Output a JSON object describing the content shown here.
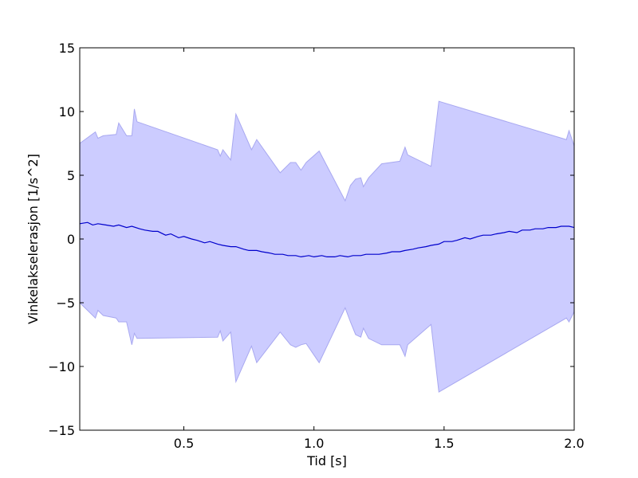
{
  "chart_data": {
    "type": "area",
    "title": "",
    "xlabel": "Tid [s]",
    "ylabel": "Vinkelakselerasjon [1/s^2]",
    "xlim": [
      0.1,
      2.0
    ],
    "ylim": [
      -15,
      15
    ],
    "xticks": [
      0.5,
      1.0,
      1.5,
      2.0
    ],
    "xtick_labels": [
      "0.5",
      "1.0",
      "1.5",
      "2.0"
    ],
    "yticks": [
      15,
      10,
      5,
      0,
      -5,
      -10,
      -15
    ],
    "ytick_labels": [
      "15",
      "10",
      "5",
      "0",
      "−5",
      "−10",
      "−15"
    ],
    "grid": false,
    "legend": "none",
    "colors": {
      "line": "#0000cc",
      "band_fill": "#ccccff",
      "band_edge": "#a8a8f0"
    },
    "band_upper": {
      "x": [
        0.1,
        0.16,
        0.17,
        0.19,
        0.24,
        0.25,
        0.28,
        0.3,
        0.31,
        0.32,
        0.63,
        0.64,
        0.65,
        0.68,
        0.7,
        0.76,
        0.78,
        0.87,
        0.91,
        0.93,
        0.95,
        0.97,
        1.02,
        1.12,
        1.14,
        1.16,
        1.18,
        1.19,
        1.21,
        1.26,
        1.33,
        1.35,
        1.36,
        1.45,
        1.48,
        1.97,
        1.98,
        2.0
      ],
      "y": [
        7.5,
        8.4,
        7.9,
        8.1,
        8.2,
        9.1,
        8.1,
        8.1,
        10.2,
        9.2,
        7.0,
        6.5,
        7.0,
        6.2,
        9.8,
        7.0,
        7.8,
        5.2,
        6.0,
        6.0,
        5.4,
        6.0,
        6.9,
        3.0,
        4.2,
        4.7,
        4.8,
        4.1,
        4.8,
        5.9,
        6.1,
        7.2,
        6.6,
        5.7,
        10.8,
        7.8,
        8.5,
        7.3
      ]
    },
    "band_lower": {
      "x": [
        0.1,
        0.16,
        0.17,
        0.19,
        0.24,
        0.25,
        0.28,
        0.3,
        0.31,
        0.32,
        0.63,
        0.64,
        0.65,
        0.68,
        0.7,
        0.76,
        0.78,
        0.87,
        0.91,
        0.93,
        0.95,
        0.97,
        1.02,
        1.12,
        1.14,
        1.16,
        1.18,
        1.19,
        1.21,
        1.26,
        1.33,
        1.35,
        1.36,
        1.45,
        1.48,
        1.97,
        1.98,
        2.0
      ],
      "y": [
        -5.0,
        -6.2,
        -5.6,
        -6.0,
        -6.2,
        -6.5,
        -6.5,
        -8.3,
        -7.4,
        -7.8,
        -7.7,
        -7.2,
        -8.0,
        -7.3,
        -11.2,
        -8.4,
        -9.7,
        -7.3,
        -8.3,
        -8.5,
        -8.3,
        -8.2,
        -9.7,
        -5.4,
        -6.5,
        -7.5,
        -7.7,
        -7.0,
        -7.8,
        -8.3,
        -8.3,
        -9.2,
        -8.3,
        -6.7,
        -12.0,
        -6.2,
        -6.5,
        -5.7
      ]
    },
    "series": [
      {
        "x": [
          0.1,
          0.13,
          0.15,
          0.17,
          0.2,
          0.23,
          0.25,
          0.28,
          0.3,
          0.33,
          0.35,
          0.38,
          0.4,
          0.43,
          0.45,
          0.48,
          0.5,
          0.53,
          0.55,
          0.58,
          0.6,
          0.63,
          0.65,
          0.68,
          0.7,
          0.73,
          0.75,
          0.78,
          0.8,
          0.83,
          0.85,
          0.88,
          0.9,
          0.93,
          0.95,
          0.98,
          1.0,
          1.03,
          1.05,
          1.08,
          1.1,
          1.13,
          1.15,
          1.18,
          1.2,
          1.23,
          1.25,
          1.28,
          1.3,
          1.33,
          1.35,
          1.38,
          1.4,
          1.43,
          1.45,
          1.48,
          1.5,
          1.53,
          1.55,
          1.58,
          1.6,
          1.63,
          1.65,
          1.68,
          1.7,
          1.73,
          1.75,
          1.78,
          1.8,
          1.83,
          1.85,
          1.88,
          1.9,
          1.93,
          1.95,
          1.98,
          2.0
        ],
        "y": [
          1.2,
          1.3,
          1.1,
          1.2,
          1.1,
          1.0,
          1.1,
          0.9,
          1.0,
          0.8,
          0.7,
          0.6,
          0.6,
          0.3,
          0.4,
          0.1,
          0.2,
          0.0,
          -0.1,
          -0.3,
          -0.2,
          -0.4,
          -0.5,
          -0.6,
          -0.6,
          -0.8,
          -0.9,
          -0.9,
          -1.0,
          -1.1,
          -1.2,
          -1.2,
          -1.3,
          -1.3,
          -1.4,
          -1.3,
          -1.4,
          -1.3,
          -1.4,
          -1.4,
          -1.3,
          -1.4,
          -1.3,
          -1.3,
          -1.2,
          -1.2,
          -1.2,
          -1.1,
          -1.0,
          -1.0,
          -0.9,
          -0.8,
          -0.7,
          -0.6,
          -0.5,
          -0.4,
          -0.2,
          -0.2,
          -0.1,
          0.1,
          0.0,
          0.2,
          0.3,
          0.3,
          0.4,
          0.5,
          0.6,
          0.5,
          0.7,
          0.7,
          0.8,
          0.8,
          0.9,
          0.9,
          1.0,
          1.0,
          0.9
        ]
      }
    ]
  }
}
